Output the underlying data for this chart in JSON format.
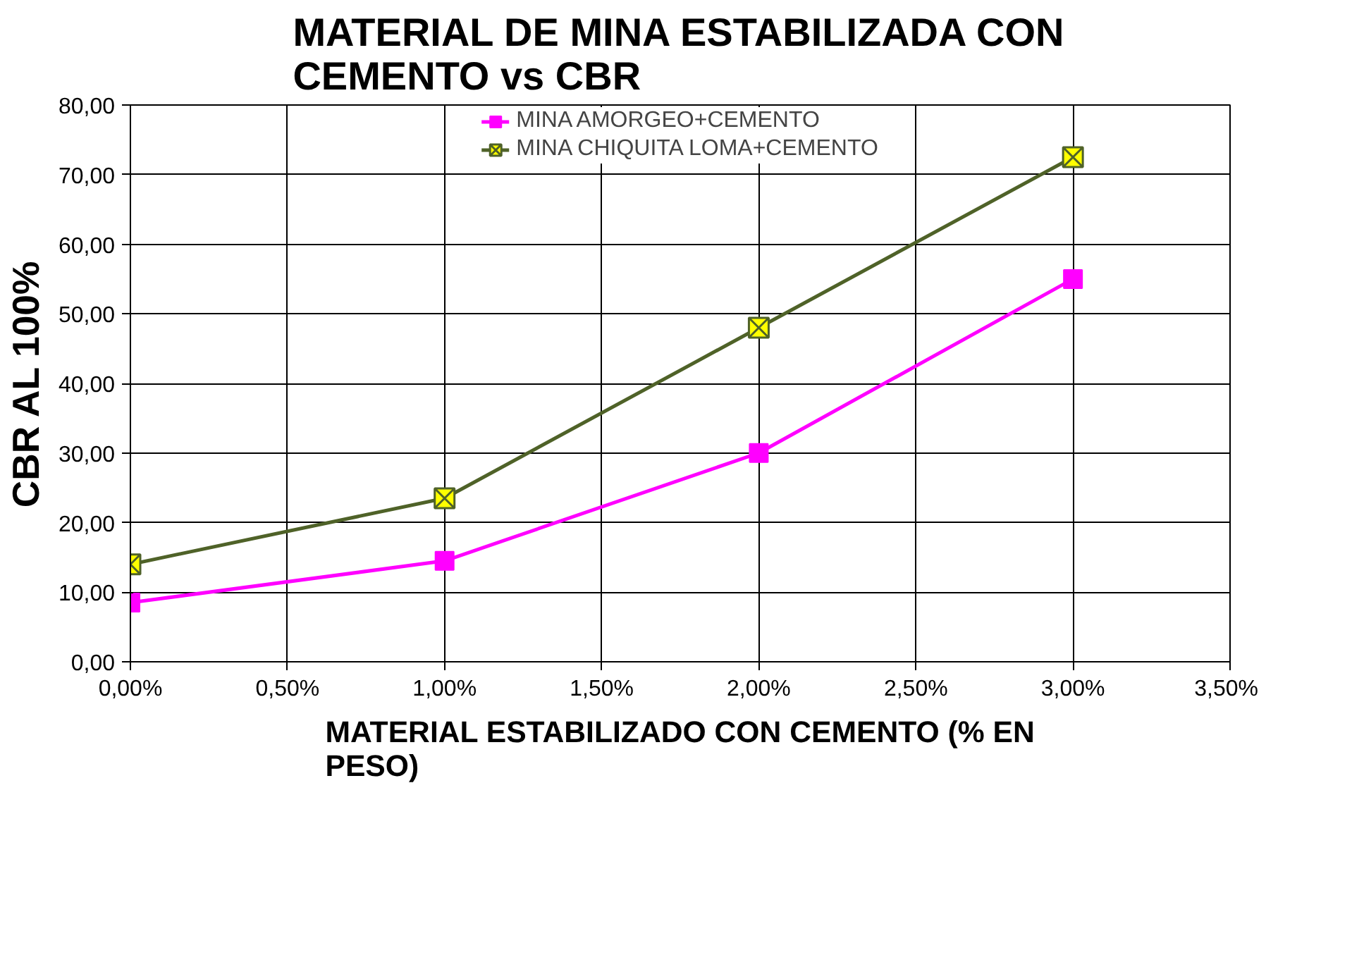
{
  "chart_data": {
    "type": "line",
    "title": "MATERIAL DE MINA ESTABILIZADA CON CEMENTO vs CBR",
    "xlabel": "MATERIAL ESTABILIZADO CON CEMENTO (% EN PESO)",
    "ylabel": "CBR AL 100%",
    "x": [
      0,
      1,
      2,
      3
    ],
    "series": [
      {
        "name": "MINA AMORGEO+CEMENTO",
        "color": "#ff00ff",
        "marker": "square",
        "values": [
          8.5,
          14.5,
          30,
          55
        ]
      },
      {
        "name": "MINA CHIQUITA LOMA+CEMENTO",
        "color": "#4f6228",
        "marker": "cross",
        "values": [
          14,
          23.5,
          48,
          72.5
        ]
      }
    ],
    "xlim": [
      0,
      3.5
    ],
    "xticks": [
      {
        "value": 0,
        "label": "0,00%"
      },
      {
        "value": 0.5,
        "label": "0,50%"
      },
      {
        "value": 1,
        "label": "1,00%"
      },
      {
        "value": 1.5,
        "label": "1,50%"
      },
      {
        "value": 2,
        "label": "2,00%"
      },
      {
        "value": 2.5,
        "label": "2,50%"
      },
      {
        "value": 3,
        "label": "3,00%"
      },
      {
        "value": 3.5,
        "label": "3,50%"
      }
    ],
    "ylim": [
      0,
      80
    ],
    "yticks": [
      {
        "value": 0,
        "label": "0,00"
      },
      {
        "value": 10,
        "label": "10,00"
      },
      {
        "value": 20,
        "label": "20,00"
      },
      {
        "value": 30,
        "label": "30,00"
      },
      {
        "value": 40,
        "label": "40,00"
      },
      {
        "value": 50,
        "label": "50,00"
      },
      {
        "value": 60,
        "label": "60,00"
      },
      {
        "value": 70,
        "label": "70,00"
      },
      {
        "value": 80,
        "label": "80,00"
      }
    ],
    "grid": true,
    "legend": "top"
  }
}
